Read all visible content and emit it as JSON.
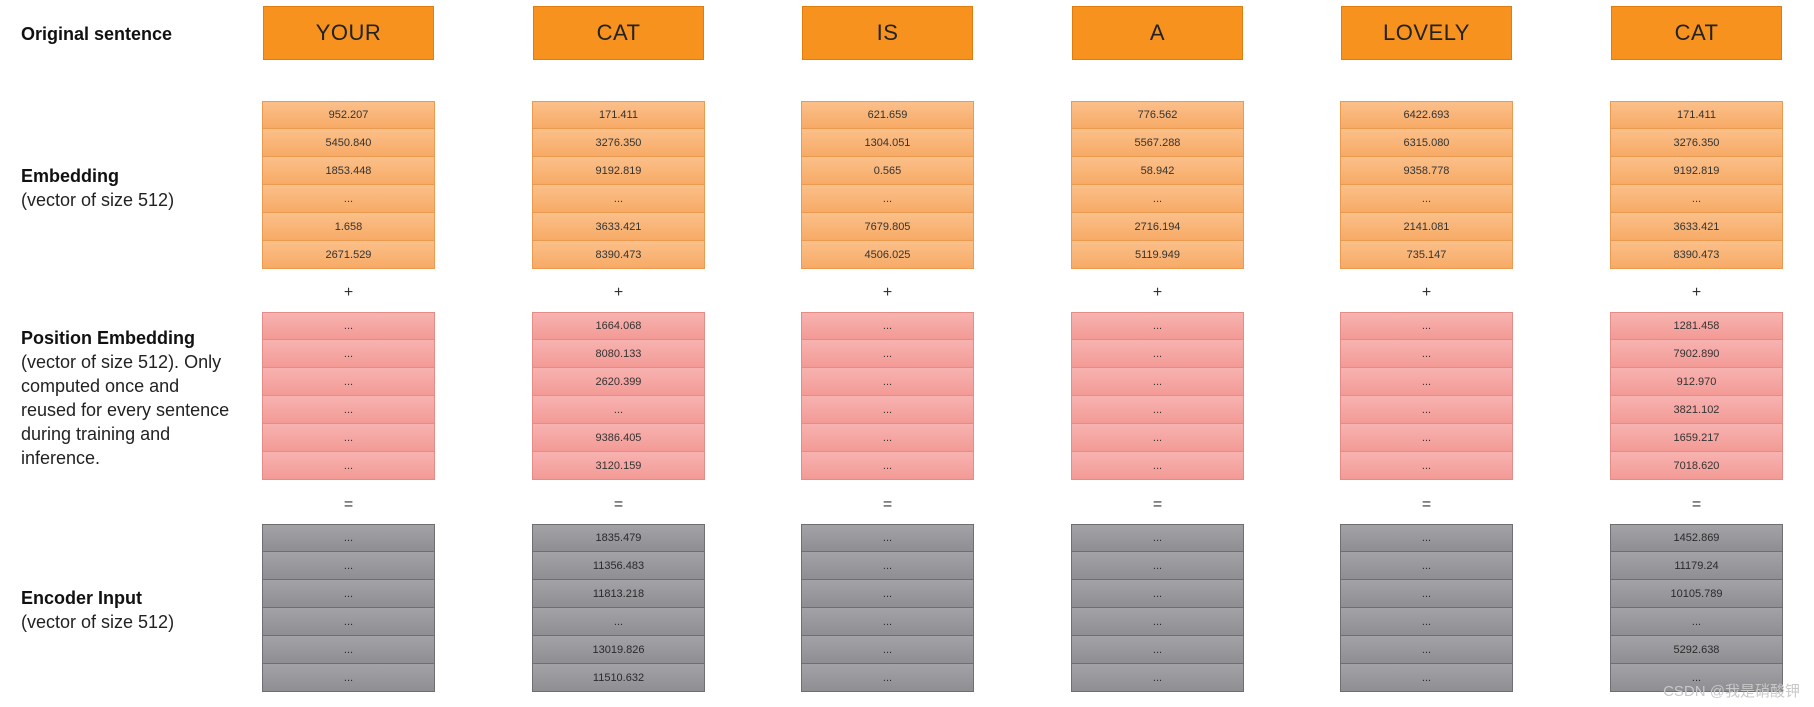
{
  "labels": {
    "original": "Original sentence",
    "embedding_title": "Embedding",
    "embedding_sub": "(vector of size 512)",
    "position_title": "Position Embedding",
    "position_sub": "(vector of size 512). Only computed once and reused for every sentence during training and inference.",
    "encoder_title": "Encoder Input",
    "encoder_sub": "(vector of size 512)"
  },
  "operators": {
    "plus": "+",
    "equals": "="
  },
  "columns": [
    {
      "word": "YOUR",
      "embedding": [
        "952.207",
        "5450.840",
        "1853.448",
        "...",
        "1.658",
        "2671.529"
      ],
      "position": [
        "...",
        "...",
        "...",
        "...",
        "...",
        "..."
      ],
      "encoder": [
        "...",
        "...",
        "...",
        "...",
        "...",
        "..."
      ]
    },
    {
      "word": "CAT",
      "embedding": [
        "171.411",
        "3276.350",
        "9192.819",
        "...",
        "3633.421",
        "8390.473"
      ],
      "position": [
        "1664.068",
        "8080.133",
        "2620.399",
        "...",
        "9386.405",
        "3120.159"
      ],
      "encoder": [
        "1835.479",
        "11356.483",
        "11813.218",
        "...",
        "13019.826",
        "11510.632"
      ]
    },
    {
      "word": "IS",
      "embedding": [
        "621.659",
        "1304.051",
        "0.565",
        "...",
        "7679.805",
        "4506.025"
      ],
      "position": [
        "...",
        "...",
        "...",
        "...",
        "...",
        "..."
      ],
      "encoder": [
        "...",
        "...",
        "...",
        "...",
        "...",
        "..."
      ]
    },
    {
      "word": "A",
      "embedding": [
        "776.562",
        "5567.288",
        "58.942",
        "...",
        "2716.194",
        "5119.949"
      ],
      "position": [
        "...",
        "...",
        "...",
        "...",
        "...",
        "..."
      ],
      "encoder": [
        "...",
        "...",
        "...",
        "...",
        "...",
        "..."
      ]
    },
    {
      "word": "LOVELY",
      "embedding": [
        "6422.693",
        "6315.080",
        "9358.778",
        "...",
        "2141.081",
        "735.147"
      ],
      "position": [
        "...",
        "...",
        "...",
        "...",
        "...",
        "..."
      ],
      "encoder": [
        "...",
        "...",
        "...",
        "...",
        "...",
        "..."
      ]
    },
    {
      "word": "CAT",
      "embedding": [
        "171.411",
        "3276.350",
        "9192.819",
        "...",
        "3633.421",
        "8390.473"
      ],
      "position": [
        "1281.458",
        "7902.890",
        "912.970",
        "3821.102",
        "1659.217",
        "7018.620"
      ],
      "encoder": [
        "1452.869",
        "11179.24",
        "10105.789",
        "...",
        "5292.638",
        "..."
      ]
    }
  ],
  "watermark": "CSDN @我是硝酸钾"
}
